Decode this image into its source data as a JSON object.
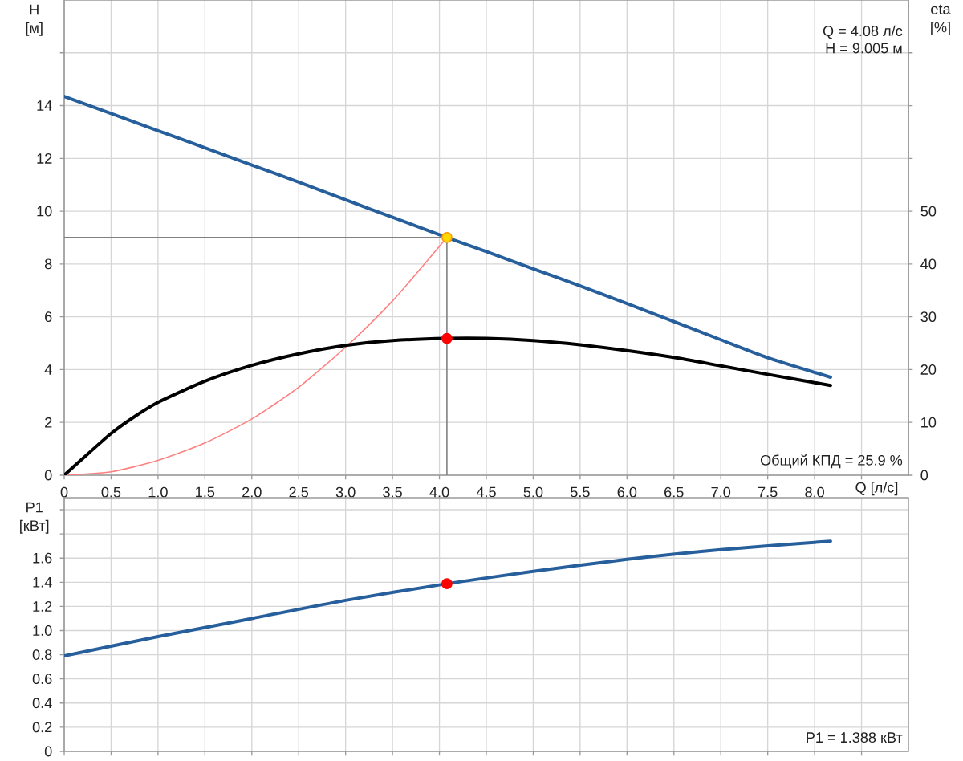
{
  "chart_data": [
    {
      "type": "line",
      "xlabel": "Q [л/с]",
      "ylabel": "H [м]",
      "y2label": "eta [%]",
      "xlim": [
        0,
        9
      ],
      "xticks": [
        0,
        0.5,
        {
          "value": 1,
          "label": "1.0"
        },
        1.5,
        {
          "value": 2,
          "label": "2.0"
        },
        2.5,
        {
          "value": 3,
          "label": "3.0"
        },
        3.5,
        {
          "value": 4,
          "label": "4.0"
        },
        4.5,
        {
          "value": 5,
          "label": "5.0"
        },
        5.5,
        {
          "value": 6,
          "label": "6.0"
        },
        6.5,
        {
          "value": 7,
          "label": "7.0"
        },
        7.5,
        {
          "value": 8,
          "label": "8.0"
        },
        {
          "value": 8.5,
          "label": null
        }
      ],
      "ylim": [
        0,
        18
      ],
      "yticks": [
        0,
        2,
        4,
        6,
        8,
        10,
        12,
        14,
        {
          "value": 16,
          "label": null
        }
      ],
      "y2lim": [
        0,
        90
      ],
      "y2ticks": [
        0,
        10,
        20,
        30,
        40,
        50,
        {
          "value": 60,
          "label": null
        },
        {
          "value": 70,
          "label": null
        },
        {
          "value": 80,
          "label": null
        }
      ],
      "grid": true,
      "legend": false,
      "marker": "none",
      "series": [
        {
          "color": "#265f9c",
          "x": [
            0,
            0.5,
            1,
            1.5,
            2,
            2.5,
            3,
            3.5,
            4.08,
            4.5,
            5,
            5.5,
            6,
            6.5,
            7,
            7.5,
            8.17
          ],
          "values": [
            14.35,
            13.7,
            13.05,
            12.4,
            11.75,
            11.1,
            10.43,
            9.77,
            9.005,
            8.47,
            7.82,
            7.17,
            6.5,
            5.82,
            5.13,
            4.45,
            3.71
          ]
        },
        {
          "color": "#000000",
          "axis": "y2",
          "x": [
            0,
            0.25,
            0.5,
            0.75,
            1,
            1.5,
            2,
            2.5,
            3,
            3.5,
            4.08,
            4.5,
            5,
            5.5,
            6,
            6.5,
            7,
            7.5,
            8.17
          ],
          "values": [
            0,
            4.0,
            7.9,
            11.1,
            13.8,
            17.8,
            20.8,
            23.0,
            24.6,
            25.5,
            25.9,
            25.9,
            25.5,
            24.7,
            23.6,
            22.3,
            20.7,
            19.1,
            17.0
          ]
        },
        {
          "color": "#ff8080",
          "x": [
            0,
            0.5,
            1,
            1.5,
            2,
            2.5,
            3,
            3.5,
            4.08
          ],
          "values": [
            0,
            0.13,
            0.56,
            1.22,
            2.13,
            3.33,
            4.85,
            6.6,
            9.005
          ]
        },
        {
          "color": "#808080",
          "x": [
            0,
            4.08,
            4.08
          ],
          "values": [
            9.005,
            9.005,
            0
          ]
        },
        {
          "type": "scatter",
          "marker": "circle",
          "color": "#ffd700",
          "x": [
            4.08
          ],
          "values": [
            9.005
          ]
        },
        {
          "type": "scatter",
          "marker": "circle",
          "color": "#ff0000",
          "axis": "y2",
          "x": [
            4.08
          ],
          "values": [
            25.9
          ]
        }
      ],
      "annotations": [
        "Q = 4.08 л/с",
        "H = 9.005 м",
        "Общий КПД = 25.9 %"
      ]
    },
    {
      "type": "line",
      "ylabel": "P1 [кВт]",
      "xlim": [
        0,
        9
      ],
      "xticks": [
        0,
        0.5,
        1,
        1.5,
        2,
        2.5,
        3,
        3.5,
        4,
        4.5,
        5,
        5.5,
        6,
        6.5,
        7,
        7.5,
        8,
        8.5
      ],
      "ylim": [
        0,
        2.1
      ],
      "yticks": [
        0,
        0.2,
        0.4,
        0.6,
        0.8,
        {
          "value": 1,
          "label": "1.0"
        },
        1.2,
        1.4,
        1.6,
        {
          "value": 1.8,
          "label": null
        },
        {
          "value": 2,
          "label": null
        }
      ],
      "tick_labels": "y",
      "grid": true,
      "legend": false,
      "marker": "none",
      "series": [
        {
          "color": "#265f9c",
          "x": [
            0,
            1,
            2,
            3,
            4.08,
            5,
            6,
            7,
            8.17
          ],
          "values": [
            0.79,
            0.95,
            1.1,
            1.25,
            1.388,
            1.49,
            1.59,
            1.67,
            1.74
          ]
        },
        {
          "type": "scatter",
          "marker": "circle",
          "color": "#ff0000",
          "x": [
            4.08
          ],
          "values": [
            1.388
          ]
        }
      ],
      "annotations": [
        "P1 = 1.388 кВт"
      ]
    }
  ]
}
